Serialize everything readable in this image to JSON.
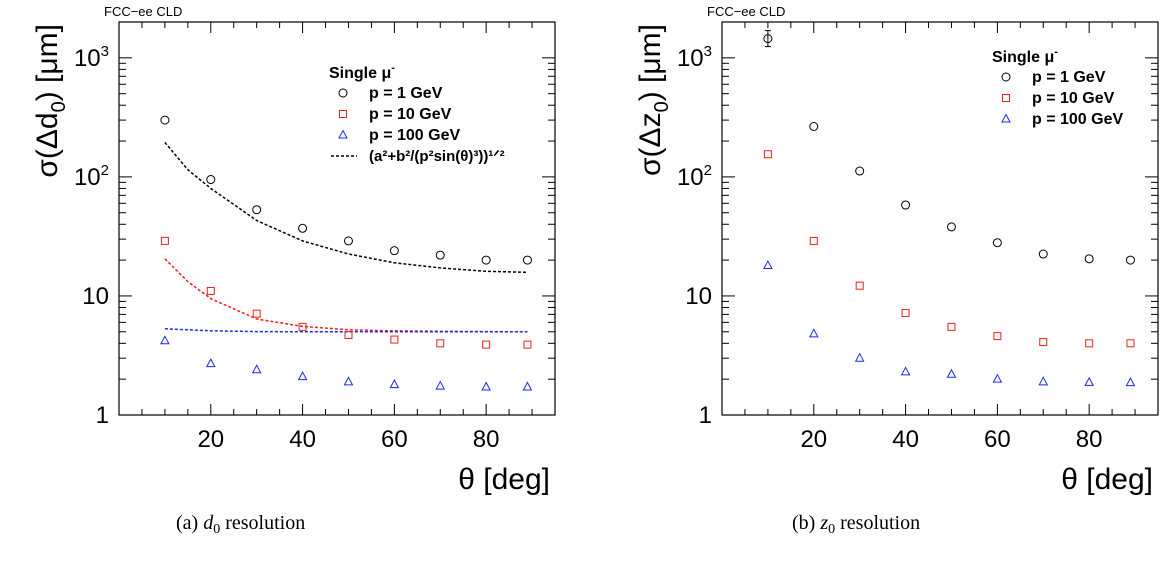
{
  "chart_data": [
    {
      "type": "scatter",
      "header": "FCC−ee CLD",
      "xlabel": "θ [deg]",
      "ylabel": {
        "pre": "σ(Δd",
        "sub": "0",
        "post": ") [μm]"
      },
      "x_scale": "linear",
      "xlim": [
        0,
        95
      ],
      "y_scale": "log",
      "ylim": [
        1,
        2000
      ],
      "x_ticks": [
        "20",
        "40",
        "60",
        "80"
      ],
      "y_ticks": [
        {
          "value": 1,
          "base": "1",
          "exp": ""
        },
        {
          "value": 10,
          "base": "10",
          "exp": ""
        },
        {
          "value": 100,
          "base": "10",
          "exp": "2"
        },
        {
          "value": 1000,
          "base": "10",
          "exp": "3"
        }
      ],
      "legend_position": "top-right",
      "legend_title": "Single μ",
      "legend_title_sup": "-",
      "series": [
        {
          "name": "p = 1 GeV",
          "marker": "circle",
          "color": "#000000",
          "x": [
            10,
            20,
            30,
            40,
            50,
            60,
            70,
            80,
            89
          ],
          "y": [
            300,
            95,
            53,
            37,
            29,
            24,
            22,
            20,
            20
          ]
        },
        {
          "name": "p = 10 GeV",
          "marker": "square",
          "color": "#e8221b",
          "x": [
            10,
            20,
            30,
            40,
            50,
            60,
            70,
            80,
            89
          ],
          "y": [
            29,
            11,
            7.1,
            5.5,
            4.7,
            4.3,
            4.0,
            3.9,
            3.9
          ]
        },
        {
          "name": "p = 100 GeV",
          "marker": "triangle",
          "color": "#1a2be6",
          "x": [
            10,
            20,
            30,
            40,
            50,
            60,
            70,
            80,
            89
          ],
          "y": [
            4.2,
            2.7,
            2.4,
            2.1,
            1.9,
            1.8,
            1.75,
            1.72,
            1.72
          ]
        }
      ],
      "fit": {
        "label": "(a²+b²/(p²sin(θ)³))¹ᐟ²",
        "curves": [
          {
            "color": "#000000",
            "x": [
              10,
              15,
              20,
              30,
              40,
              50,
              60,
              70,
              80,
              89
            ],
            "y": [
              195,
              115,
              80,
              43,
              29,
              22.5,
              19,
              17.2,
              16.1,
              15.8
            ]
          },
          {
            "color": "#e8221b",
            "x": [
              10,
              15,
              20,
              30,
              40,
              50,
              60,
              70,
              80,
              89
            ],
            "y": [
              20.5,
              13.2,
              9.5,
              6.4,
              5.55,
              5.2,
              5.1,
              5.05,
              5.02,
              5.0
            ]
          },
          {
            "color": "#1a2be6",
            "x": [
              10,
              20,
              30,
              40,
              50,
              60,
              70,
              80,
              89
            ],
            "y": [
              5.3,
              5.1,
              5.02,
              5.0,
              5.0,
              5.0,
              5.0,
              5.0,
              5.0
            ]
          }
        ]
      },
      "caption": {
        "prefix": "(a) ",
        "var": "d",
        "sub": "0",
        "suffix": " resolution"
      }
    },
    {
      "type": "scatter",
      "header": "FCC−ee CLD",
      "xlabel": "θ [deg]",
      "ylabel": {
        "pre": "σ(Δz",
        "sub": "0",
        "post": ") [μm]"
      },
      "x_scale": "linear",
      "xlim": [
        0,
        95
      ],
      "y_scale": "log",
      "ylim": [
        1,
        2000
      ],
      "x_ticks": [
        "20",
        "40",
        "60",
        "80"
      ],
      "y_ticks": [
        {
          "value": 1,
          "base": "1",
          "exp": ""
        },
        {
          "value": 10,
          "base": "10",
          "exp": ""
        },
        {
          "value": 100,
          "base": "10",
          "exp": "2"
        },
        {
          "value": 1000,
          "base": "10",
          "exp": "3"
        }
      ],
      "legend_position": "top-right",
      "legend_title": "Single μ",
      "legend_title_sup": "-",
      "series": [
        {
          "name": "p = 1 GeV",
          "marker": "circle",
          "color": "#000000",
          "x": [
            10,
            20,
            30,
            40,
            50,
            60,
            70,
            80,
            89
          ],
          "y": [
            1450,
            265,
            112,
            58,
            38,
            28,
            22.5,
            20.5,
            20
          ]
        },
        {
          "name": "p = 10 GeV",
          "marker": "square",
          "color": "#e8221b",
          "x": [
            10,
            20,
            30,
            40,
            50,
            60,
            70,
            80,
            89
          ],
          "y": [
            155,
            29,
            12.2,
            7.2,
            5.5,
            4.6,
            4.1,
            4.0,
            4.0
          ]
        },
        {
          "name": "p = 100 GeV",
          "marker": "triangle",
          "color": "#1a2be6",
          "x": [
            10,
            20,
            30,
            40,
            50,
            60,
            70,
            80,
            89
          ],
          "y": [
            18,
            4.8,
            3.0,
            2.3,
            2.2,
            2.0,
            1.9,
            1.88,
            1.87
          ]
        }
      ],
      "caption": {
        "prefix": "(b) ",
        "var": "z",
        "sub": "0",
        "suffix": " resolution"
      }
    }
  ]
}
